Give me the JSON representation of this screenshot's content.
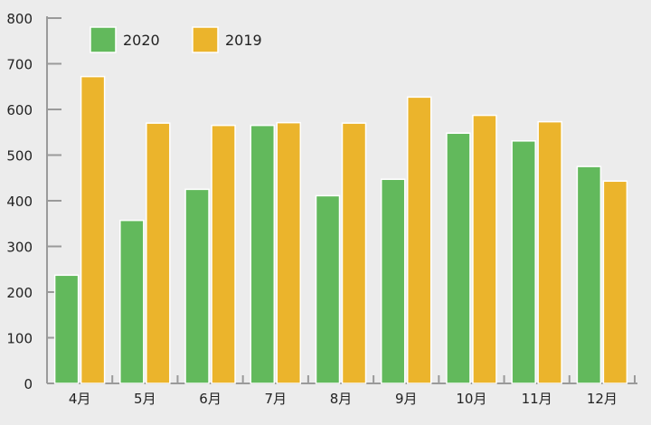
{
  "chart_data": {
    "type": "bar",
    "title": "",
    "xlabel": "",
    "ylabel": "",
    "ylim": [
      0,
      800
    ],
    "yticks": [
      0,
      100,
      200,
      300,
      400,
      500,
      600,
      700,
      800
    ],
    "grid": false,
    "legend_position": "top-left",
    "categories": [
      "4月",
      "5月",
      "6月",
      "7月",
      "8月",
      "9月",
      "10月",
      "11月",
      "12月"
    ],
    "series": [
      {
        "name": "2020",
        "color": "#62b95c",
        "values": [
          237,
          357,
          425,
          565,
          411,
          447,
          548,
          531,
          475
        ]
      },
      {
        "name": "2019",
        "color": "#ebb42c",
        "values": [
          672,
          570,
          565,
          571,
          570,
          627,
          587,
          573,
          443
        ]
      }
    ]
  }
}
